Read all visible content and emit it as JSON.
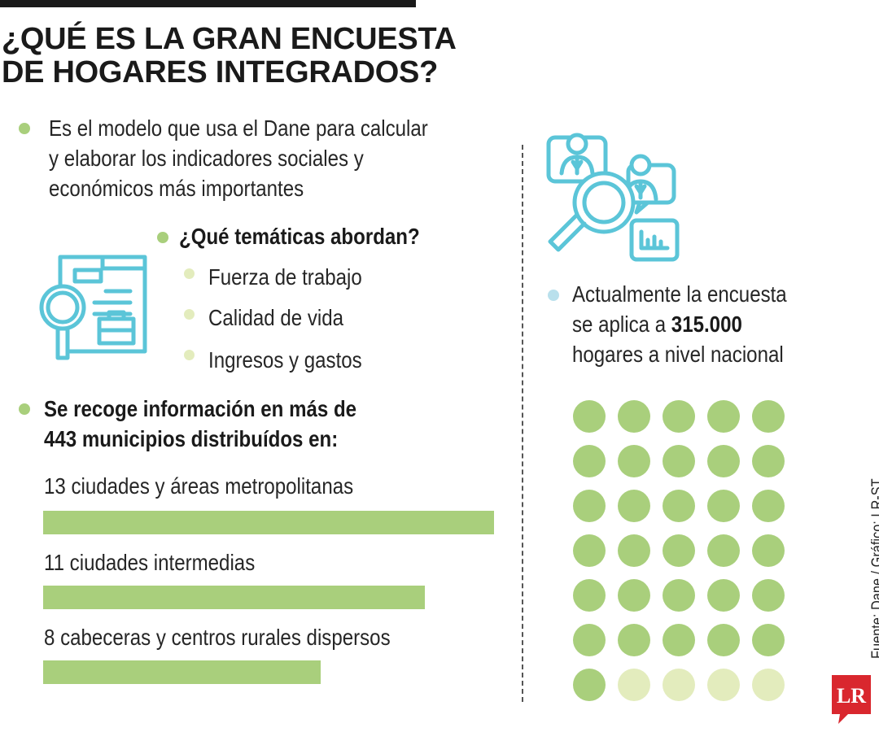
{
  "title_lines": [
    "¿QUÉ ES LA GRAN ENCUESTA",
    "DE HOGARES INTEGRADOS?"
  ],
  "intro_lines": [
    "Es el modelo que usa el Dane para calcular",
    "y elaborar los indicadores sociales y",
    "económicos más importantes"
  ],
  "topics": {
    "heading": "¿Qué temáticas abordan?",
    "items": [
      "Fuerza de trabajo",
      "Calidad de vida",
      "Ingresos y gastos"
    ]
  },
  "municipios_lines": [
    "Se recoge información en más de",
    "443 municipios distribuídos en:"
  ],
  "chart_data": {
    "type": "bar",
    "categories": [
      "13 ciudades y áreas metropolitanas",
      "11 ciudades intermedias",
      "8 cabeceras y centros rurales dispersos"
    ],
    "values": [
      13,
      11,
      8
    ],
    "title": "",
    "xlabel": "",
    "ylabel": ""
  },
  "survey": {
    "line1": "Actualmente la encuesta",
    "line2_prefix": "se aplica a ",
    "line2_value": "315.000",
    "line3": "hogares a nivel nacional"
  },
  "waffle": {
    "rows": 7,
    "cols": 5,
    "filled": 31,
    "color_filled": "#a9cf7c",
    "color_empty": "#e3ecbd"
  },
  "source": "Fuente: Dane / Gráfico: LR-ST",
  "logo_text": "LR",
  "colors": {
    "accent_green": "#a9cf7c",
    "pale_green": "#e3ecbd",
    "icon_blue": "#5bc5d8",
    "logo_red": "#d9272e"
  }
}
